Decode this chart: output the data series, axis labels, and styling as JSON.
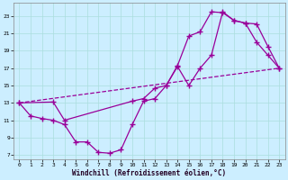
{
  "xlabel": "Windchill (Refroidissement éolien,°C)",
  "bg_color": "#cceeff",
  "grid_color": "#aadddd",
  "line_color": "#990099",
  "xlim": [
    -0.5,
    23.5
  ],
  "ylim": [
    6.5,
    24.5
  ],
  "xticks": [
    0,
    1,
    2,
    3,
    4,
    5,
    6,
    7,
    8,
    9,
    10,
    11,
    12,
    13,
    14,
    15,
    16,
    17,
    18,
    19,
    20,
    21,
    22,
    23
  ],
  "yticks": [
    7,
    9,
    11,
    13,
    15,
    17,
    19,
    21,
    23
  ],
  "curve1_x": [
    0,
    1,
    2,
    3,
    4,
    5,
    6,
    7,
    8,
    9,
    10,
    11,
    12,
    13,
    14,
    15,
    16,
    17,
    18,
    19,
    20,
    21,
    22,
    23
  ],
  "curve1_y": [
    13,
    11.5,
    11.2,
    11.0,
    10.5,
    8.5,
    8.5,
    7.3,
    7.2,
    7.6,
    10.5,
    13.2,
    13.5,
    15.0,
    17.3,
    20.7,
    21.2,
    23.5,
    23.4,
    22.5,
    22.2,
    20.0,
    18.5,
    17.0
  ],
  "curve2_x": [
    0,
    3,
    4,
    10,
    11,
    12,
    13,
    14,
    15,
    16,
    17,
    18,
    19,
    20,
    21,
    22,
    23
  ],
  "curve2_y": [
    13,
    13.1,
    11.0,
    13.2,
    13.5,
    14.7,
    15.0,
    17.2,
    15.0,
    17.0,
    18.5,
    23.5,
    22.5,
    22.2,
    22.1,
    19.5,
    17.0
  ],
  "curve3_x": [
    0,
    23
  ],
  "curve3_y": [
    13,
    17
  ]
}
